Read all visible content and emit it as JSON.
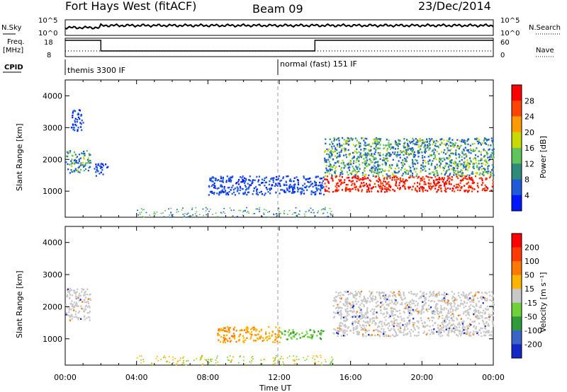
{
  "header": {
    "station": "Fort Hays West (fitACF)",
    "beam": "Beam 09",
    "date": "23/Dec/2014"
  },
  "strip_labels": {
    "nsky": "N.Sky",
    "freq_line1": "Freq.",
    "freq_line2": "[MHz]",
    "cpid": "CPID",
    "nsearch": "N.Search",
    "nave": "Nave",
    "nsky_ticks": [
      "10^5",
      "10^0"
    ],
    "nsearch_ticks": [
      "10^5",
      "10^0"
    ],
    "freq_ticks": [
      "18",
      "8"
    ],
    "nave_ticks": [
      "60",
      "0"
    ]
  },
  "cpid_segments": [
    {
      "label": "themis 3300 IF",
      "start_hour": 0
    },
    {
      "label": "normal (fast) 151 IF",
      "start_hour": 12
    }
  ],
  "chart_data": [
    {
      "type": "heatmap",
      "panel": "power",
      "xlabel": "Time UT",
      "ylabel": "Slant Range [km]",
      "x_range_hours": [
        0,
        24
      ],
      "x_ticks": [
        "00:00",
        "04:00",
        "08:00",
        "12:00",
        "16:00",
        "20:00",
        "00:00"
      ],
      "y_range": [
        180,
        4500
      ],
      "y_ticks": [
        1000,
        2000,
        3000,
        4000
      ],
      "colorbar": {
        "label": "Power [dB]",
        "ticks": [
          4,
          8,
          12,
          16,
          20,
          24,
          28
        ],
        "colors": [
          "#0018ff",
          "#1f5ad8",
          "#2f8a7a",
          "#5fc45a",
          "#c8d900",
          "#ff9b00",
          "#ff4400",
          "#ff0000"
        ]
      },
      "regions": [
        {
          "t": [
            0.0,
            1.4
          ],
          "r": [
            1600,
            2300
          ],
          "level": "mid"
        },
        {
          "t": [
            0.3,
            1.0
          ],
          "r": [
            2900,
            3600
          ],
          "level": "low"
        },
        {
          "t": [
            1.6,
            2.4
          ],
          "r": [
            1500,
            1900
          ],
          "level": "low"
        },
        {
          "t": [
            8.0,
            14.5
          ],
          "r": [
            900,
            1500
          ],
          "level": "low"
        },
        {
          "t": [
            14.5,
            24.0
          ],
          "r": [
            1000,
            1500
          ],
          "level": "high"
        },
        {
          "t": [
            14.5,
            24.0
          ],
          "r": [
            1500,
            2700
          ],
          "level": "mid"
        }
      ]
    },
    {
      "type": "heatmap",
      "panel": "velocity",
      "xlabel": "Time UT",
      "ylabel": "Slant Range [km]",
      "x_range_hours": [
        0,
        24
      ],
      "x_ticks": [
        "00:00",
        "04:00",
        "08:00",
        "12:00",
        "16:00",
        "20:00",
        "00:00"
      ],
      "y_range": [
        180,
        4500
      ],
      "y_ticks": [
        1000,
        2000,
        3000,
        4000
      ],
      "colorbar": {
        "label": "Velocity [m s⁻¹]",
        "ticks": [
          200,
          100,
          50,
          15,
          -15,
          -50,
          -100,
          -200
        ],
        "colors": [
          "#1428c8",
          "#3a64c8",
          "#2f9a3a",
          "#6fd03a",
          "#c8c8c8",
          "#ffb400",
          "#ff7800",
          "#ff3a00",
          "#ff0000"
        ]
      },
      "regions": [
        {
          "t": [
            0.0,
            1.4
          ],
          "r": [
            1600,
            2600
          ],
          "level": "ground"
        },
        {
          "t": [
            8.5,
            12.0
          ],
          "r": [
            900,
            1400
          ],
          "level": "away"
        },
        {
          "t": [
            12.0,
            14.5
          ],
          "r": [
            1000,
            1300
          ],
          "level": "toward"
        },
        {
          "t": [
            15.0,
            24.0
          ],
          "r": [
            1100,
            2500
          ],
          "level": "ground"
        }
      ]
    }
  ]
}
